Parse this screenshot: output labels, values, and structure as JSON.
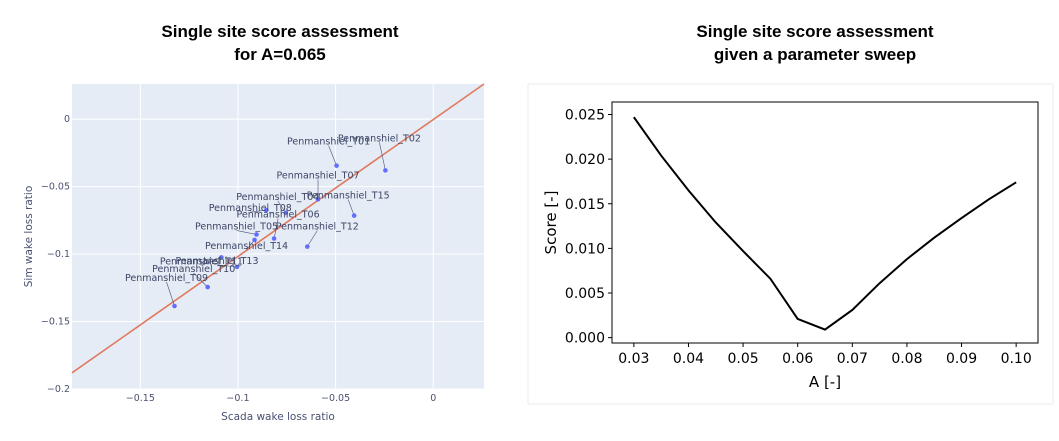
{
  "chart_data": [
    {
      "type": "scatter",
      "title": "Single site score assessment",
      "subtitle": "for A=0.065",
      "xlabel": "Scada wake loss ratio",
      "ylabel": "Sim wake loss ratio",
      "xlim": [
        -0.185,
        0.026
      ],
      "ylim": [
        -0.2,
        0.026
      ],
      "grid": true,
      "background": "#e5ecf6",
      "xticks": [
        -0.15,
        -0.1,
        -0.05,
        0
      ],
      "xtick_labels": [
        "−0.15",
        "−0.1",
        "−0.05",
        "0"
      ],
      "yticks": [
        0,
        -0.05,
        -0.1,
        -0.15,
        -0.2
      ],
      "ytick_labels": [
        "0",
        "−0.05",
        "−0.1",
        "−0.15",
        "−0.2"
      ],
      "point_color": "#636efa",
      "line_color": "#e07a5f",
      "reference_line": {
        "x": [
          -0.185,
          0.026
        ],
        "y": [
          -0.188,
          0.026
        ]
      },
      "points": [
        {
          "label": "Penmanshiel_T01",
          "x": -0.0495,
          "y": -0.0345
        },
        {
          "label": "Penmanshiel_T02",
          "x": -0.0245,
          "y": -0.038
        },
        {
          "label": "Penmanshiel_T07",
          "x": -0.059,
          "y": -0.0595
        },
        {
          "label": "Penmanshiel_T04",
          "x": -0.0755,
          "y": -0.0695
        },
        {
          "label": "Penmanshiel_T15",
          "x": -0.0405,
          "y": -0.0715
        },
        {
          "label": "Penmanshiel_T08",
          "x": -0.0855,
          "y": -0.0675
        },
        {
          "label": "Penmanshiel_T06",
          "x": -0.0815,
          "y": -0.0885
        },
        {
          "label": "Penmanshiel_T12",
          "x": -0.0645,
          "y": -0.0945
        },
        {
          "label": "Penmanshiel_T05",
          "x": -0.0905,
          "y": -0.0855
        },
        {
          "label": "Penmanshiel_T14",
          "x": -0.0915,
          "y": -0.0895
        },
        {
          "label": "Penmanshiel_T11",
          "x": -0.1085,
          "y": -0.1025
        },
        {
          "label": "Penmanshiel_T13",
          "x": -0.1005,
          "y": -0.1095
        },
        {
          "label": "Penmanshiel_T10",
          "x": -0.1155,
          "y": -0.1245
        },
        {
          "label": "Penmanshiel_T09",
          "x": -0.1325,
          "y": -0.1385
        }
      ]
    },
    {
      "type": "line",
      "title": "Single site score assessment",
      "subtitle": "given a parameter sweep",
      "xlabel": "A [-]",
      "ylabel": "Score [-]",
      "xlim": [
        0.026,
        0.104
      ],
      "ylim": [
        -0.0006,
        0.0264
      ],
      "grid": false,
      "line_color": "#000000",
      "xticks": [
        0.03,
        0.04,
        0.05,
        0.06,
        0.07,
        0.08,
        0.09,
        0.1
      ],
      "xtick_labels": [
        "0.03",
        "0.04",
        "0.05",
        "0.06",
        "0.07",
        "0.08",
        "0.09",
        "0.10"
      ],
      "yticks": [
        0,
        0.005,
        0.01,
        0.015,
        0.02,
        0.025
      ],
      "ytick_labels": [
        "0.000",
        "0.005",
        "0.010",
        "0.015",
        "0.020",
        "0.025"
      ],
      "x": [
        0.03,
        0.035,
        0.04,
        0.045,
        0.05,
        0.055,
        0.06,
        0.065,
        0.07,
        0.075,
        0.08,
        0.085,
        0.09,
        0.095,
        0.1
      ],
      "y": [
        0.0247,
        0.0204,
        0.0165,
        0.0129,
        0.0097,
        0.0066,
        0.0021,
        0.0009,
        0.0031,
        0.0061,
        0.0088,
        0.0112,
        0.0134,
        0.0155,
        0.0174
      ]
    }
  ]
}
